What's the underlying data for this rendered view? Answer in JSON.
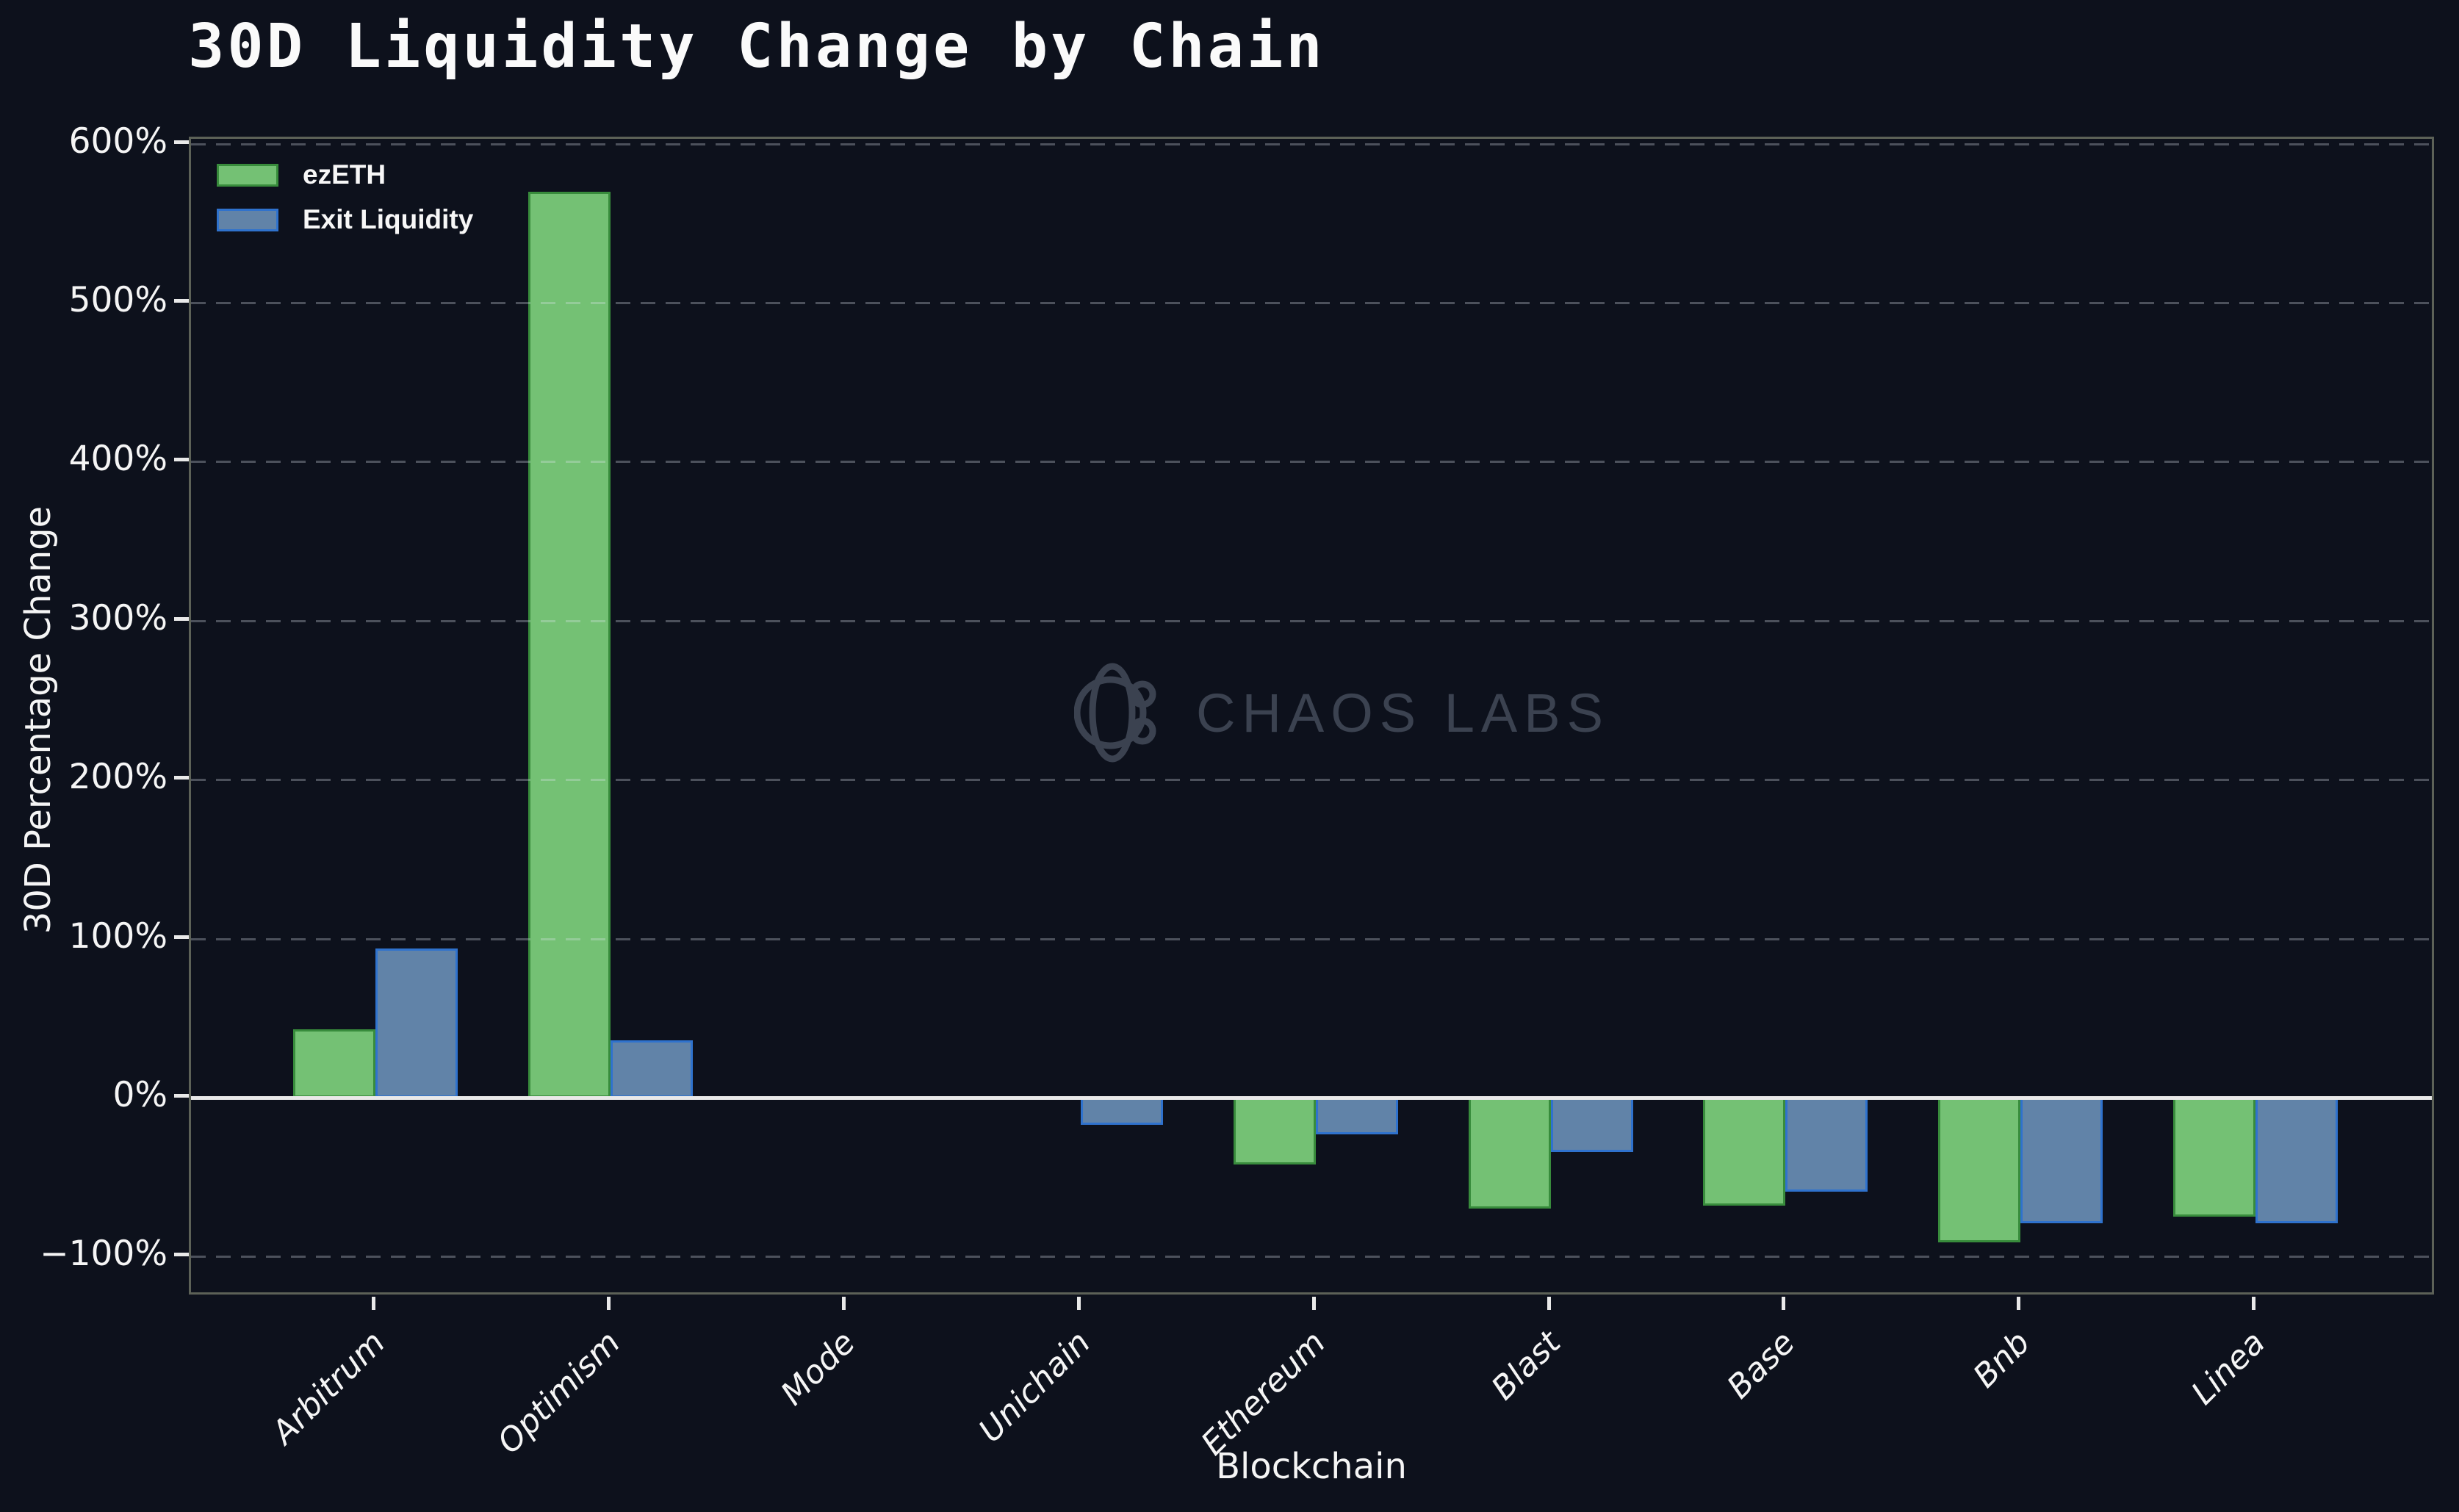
{
  "title": "30D Liquidity Change by Chain",
  "watermark": {
    "text": "CHAOS LABS",
    "icon": "chaos-labs-orbit-logo"
  },
  "legend": {
    "items": [
      {
        "label": "ezETH",
        "fill": "#74c174",
        "edge": "#388c3c"
      },
      {
        "label": "Exit Liquidity",
        "fill": "#6183a8",
        "edge": "#2f72cd"
      }
    ]
  },
  "chart_data": {
    "type": "bar",
    "title": "30D Liquidity Change by Chain",
    "xlabel": "Blockchain",
    "ylabel": "30D Percentage Change",
    "categories": [
      "Arbitrum",
      "Optimism",
      "Mode",
      "Unichain",
      "Ethereum",
      "Blast",
      "Base",
      "Bnb",
      "Linea"
    ],
    "series": [
      {
        "name": "ezETH",
        "values": [
          43,
          570,
          0,
          0,
          -42,
          -70,
          -68,
          -91,
          -75
        ]
      },
      {
        "name": "Exit Liquidity",
        "values": [
          94,
          36,
          0,
          -17,
          -23,
          -34,
          -59,
          -79,
          -79
        ]
      }
    ],
    "unit": "%",
    "y_ticks": [
      {
        "value": 600,
        "label": "600%"
      },
      {
        "value": 500,
        "label": "500%"
      },
      {
        "value": 400,
        "label": "400%"
      },
      {
        "value": 300,
        "label": "300%"
      },
      {
        "value": 200,
        "label": "200%"
      },
      {
        "value": 100,
        "label": "100%"
      },
      {
        "value": 0,
        "label": "0%"
      },
      {
        "value": -100,
        "label": "−100%"
      }
    ],
    "ylim": [
      -125,
      604
    ],
    "grid": "horizontal-dashed",
    "zero_line": true,
    "legend_position": "upper-left"
  },
  "colors": {
    "background": "#0d111c",
    "ezeth_fill": "#74c174",
    "ezeth_edge": "#388c3c",
    "exit_liquidity_fill": "#6183a8",
    "exit_liquidity_edge": "#2f72cd",
    "gridline": "#4d5460",
    "zero_line": "#e9e9e9",
    "spine": "#5c6157",
    "text": "#f5f5f5",
    "watermark": "#3b4250"
  }
}
